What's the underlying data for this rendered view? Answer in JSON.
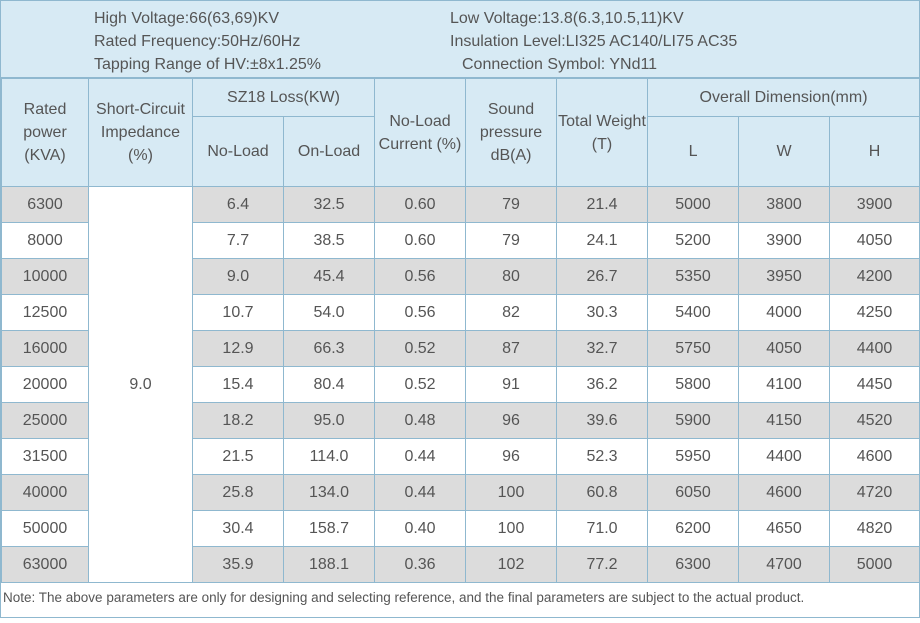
{
  "info": {
    "high_voltage": "High Voltage:66(63,69)KV",
    "rated_frequency": "Rated Frequency:50Hz/60Hz",
    "tapping_range": "Tapping Range of HV:±8x1.25%",
    "low_voltage": "Low Voltage:13.8(6.3,10.5,11)KV",
    "insulation_level": "Insulation Level:LI325 AC140/LI75 AC35",
    "connection_symbol": "Connection Symbol: YNd11"
  },
  "headers": {
    "rated_power": "Rated power (KVA)",
    "impedance": "Short-Circuit Impedance (%)",
    "loss_group": "SZ18 Loss(KW)",
    "no_load_loss": "No-Load",
    "on_load_loss": "On-Load",
    "no_load_current": "No-Load Current (%)",
    "sound": "Sound pressure dB(A)",
    "weight": "Total Weight (T)",
    "dimension_group": "Overall Dimension(mm)",
    "dim_l": "L",
    "dim_w": "W",
    "dim_h": "H"
  },
  "impedance_value": "9.0",
  "rows": [
    [
      "6300",
      "6.4",
      "32.5",
      "0.60",
      "79",
      "21.4",
      "5000",
      "3800",
      "3900"
    ],
    [
      "8000",
      "7.7",
      "38.5",
      "0.60",
      "79",
      "24.1",
      "5200",
      "3900",
      "4050"
    ],
    [
      "10000",
      "9.0",
      "45.4",
      "0.56",
      "80",
      "26.7",
      "5350",
      "3950",
      "4200"
    ],
    [
      "12500",
      "10.7",
      "54.0",
      "0.56",
      "82",
      "30.3",
      "5400",
      "4000",
      "4250"
    ],
    [
      "16000",
      "12.9",
      "66.3",
      "0.52",
      "87",
      "32.7",
      "5750",
      "4050",
      "4400"
    ],
    [
      "20000",
      "15.4",
      "80.4",
      "0.52",
      "91",
      "36.2",
      "5800",
      "4100",
      "4450"
    ],
    [
      "25000",
      "18.2",
      "95.0",
      "0.48",
      "96",
      "39.6",
      "5900",
      "4150",
      "4520"
    ],
    [
      "31500",
      "21.5",
      "114.0",
      "0.44",
      "96",
      "52.3",
      "5950",
      "4400",
      "4600"
    ],
    [
      "40000",
      "25.8",
      "134.0",
      "0.44",
      "100",
      "60.8",
      "6050",
      "4600",
      "4720"
    ],
    [
      "50000",
      "30.4",
      "158.7",
      "0.40",
      "100",
      "71.0",
      "6200",
      "4650",
      "4820"
    ],
    [
      "63000",
      "35.9",
      "188.1",
      "0.36",
      "102",
      "77.2",
      "6300",
      "4700",
      "5000"
    ]
  ],
  "note": "Note: The above parameters are only for designing and selecting  reference, and the final parameters are subject to the actual product.",
  "colors": {
    "header_bg": "#d7eaf4",
    "border": "#8fb8cf",
    "odd_row_bg": "#dcdcdc",
    "text": "#555555"
  }
}
